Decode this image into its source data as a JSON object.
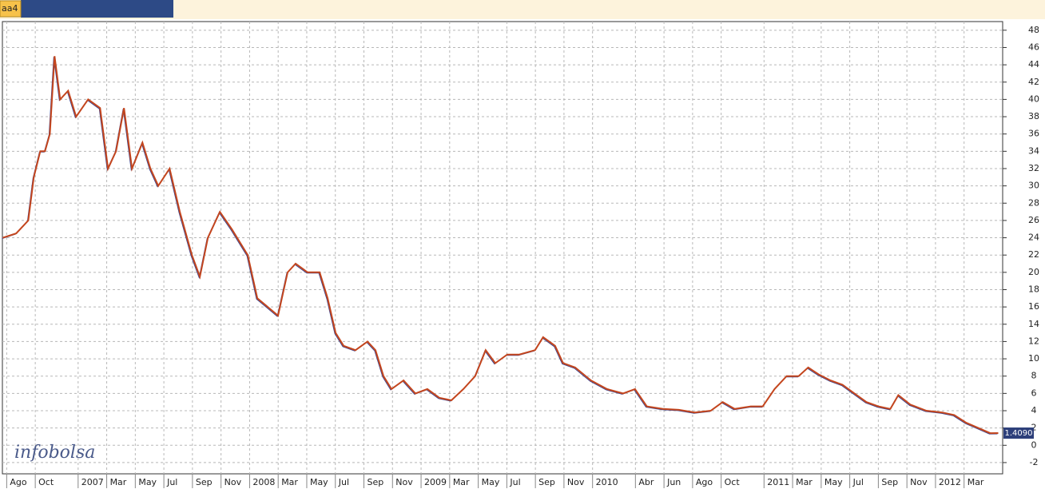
{
  "tab": "aa4",
  "chart_data": {
    "type": "line",
    "watermark": "infobolsa",
    "x": [
      -0.28,
      0.67,
      1.51,
      1.9,
      2.35,
      2.68,
      3.02,
      3.35,
      3.74,
      4.3,
      4.86,
      5.7,
      6.54,
      7.09,
      7.65,
      8.21,
      8.77,
      9.5,
      10.06,
      10.61,
      11.4,
      12.12,
      12.96,
      13.52,
      14.08,
      14.92,
      15.75,
      16.87,
      17.54,
      18.27,
      18.99,
      19.66,
      20.22,
      21.06,
      21.9,
      22.46,
      23.02,
      23.58,
      24.41,
      25.25,
      25.81,
      26.37,
      26.93,
      27.77,
      28.6,
      29.44,
      30.28,
      31.12,
      31.96,
      32.79,
      33.52,
      34.19,
      35.03,
      35.87,
      36.98,
      37.54,
      38.38,
      38.94,
      39.78,
      40.89,
      42.01,
      43.13,
      43.97,
      44.8,
      45.92,
      47.04,
      48.16,
      49.27,
      50.11,
      50.95,
      52.07,
      52.91,
      53.74,
      54.58,
      55.42,
      56.09,
      56.82,
      57.65,
      58.49,
      59.33,
      60.17,
      61,
      61.84,
      62.4,
      63.24,
      64.36,
      65.47,
      66.31,
      67.15,
      67.99,
      68.83,
      69.39
    ],
    "series": [
      {
        "color": "#c4461e",
        "values": [
          24,
          24.5,
          26,
          31,
          34,
          34,
          36,
          45,
          40,
          41,
          38,
          40,
          39,
          32,
          34,
          39,
          32,
          35,
          32,
          30,
          32,
          27,
          22,
          19.5,
          24,
          27,
          25,
          22,
          17,
          16,
          15,
          20,
          21,
          20,
          20,
          17,
          13,
          11.5,
          11,
          12,
          11,
          8,
          6.5,
          7.5,
          6,
          6.5,
          5.5,
          5.2,
          6.5,
          8,
          11,
          9.5,
          10.5,
          10.5,
          11,
          12.5,
          11.5,
          9.5,
          9,
          7.5,
          6.5,
          6,
          6.5,
          4.5,
          4.2,
          4.1,
          3.8,
          4,
          5,
          4.2,
          4.5,
          4.5,
          6.5,
          8,
          8,
          9,
          8.2,
          7.5,
          7,
          6,
          5,
          4.5,
          4.2,
          5.8,
          4.7,
          4,
          3.8,
          3.5,
          2.6,
          2,
          1.4,
          1.409
        ]
      }
    ],
    "annotations": [
      {
        "x": 69.39,
        "y": 1.409,
        "label": "1.4090"
      }
    ],
    "xlim": [
      -0.3,
      69.7
    ],
    "xticks": [
      {
        "value": 0,
        "label": "Ago"
      },
      {
        "value": 2,
        "label": "Oct"
      },
      {
        "value": 5,
        "label": "2007"
      },
      {
        "value": 7,
        "label": "Mar"
      },
      {
        "value": 9,
        "label": "May"
      },
      {
        "value": 11,
        "label": "Jul"
      },
      {
        "value": 13,
        "label": "Sep"
      },
      {
        "value": 15,
        "label": "Nov"
      },
      {
        "value": 17,
        "label": "2008"
      },
      {
        "value": 19,
        "label": "Mar"
      },
      {
        "value": 21,
        "label": "May"
      },
      {
        "value": 23,
        "label": "Jul"
      },
      {
        "value": 25,
        "label": "Sep"
      },
      {
        "value": 27,
        "label": "Nov"
      },
      {
        "value": 29,
        "label": "2009"
      },
      {
        "value": 31,
        "label": "Mar"
      },
      {
        "value": 33,
        "label": "May"
      },
      {
        "value": 35,
        "label": "Jul"
      },
      {
        "value": 37,
        "label": "Sep"
      },
      {
        "value": 39,
        "label": "Nov"
      },
      {
        "value": 41,
        "label": "2010"
      },
      {
        "value": 44,
        "label": "Abr"
      },
      {
        "value": 46,
        "label": "Jun"
      },
      {
        "value": 48,
        "label": "Ago"
      },
      {
        "value": 50,
        "label": "Oct"
      },
      {
        "value": 53,
        "label": "2011"
      },
      {
        "value": 55,
        "label": "Mar"
      },
      {
        "value": 57,
        "label": "May"
      },
      {
        "value": 59,
        "label": "Jul"
      },
      {
        "value": 61,
        "label": "Sep"
      },
      {
        "value": 63,
        "label": "Nov"
      },
      {
        "value": 65,
        "label": "2012"
      },
      {
        "value": 67,
        "label": "Mar"
      }
    ],
    "ylim": [
      -3.3,
      49
    ],
    "yticks": [
      -2,
      0,
      2,
      4,
      6,
      8,
      10,
      12,
      14,
      16,
      18,
      20,
      22,
      24,
      26,
      28,
      30,
      32,
      34,
      36,
      38,
      40,
      42,
      44,
      46,
      48
    ],
    "grid": true
  }
}
